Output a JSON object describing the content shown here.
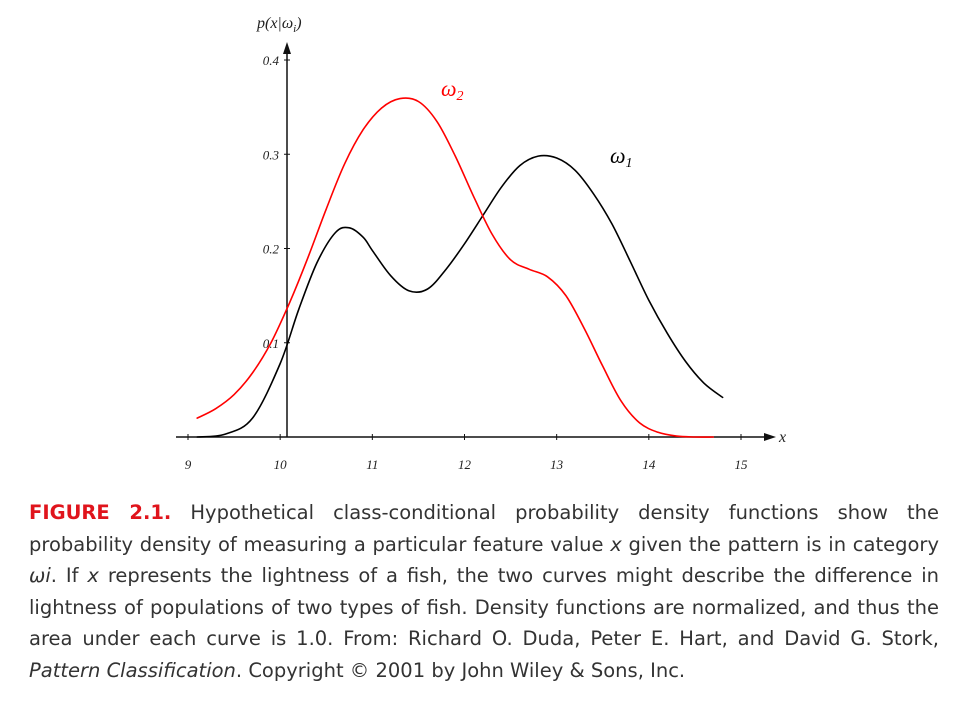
{
  "chart_data": {
    "type": "line",
    "xlabel": "x",
    "ylabel": "p(x|ωi)",
    "xlim": [
      9,
      15
    ],
    "ylim": [
      0,
      0.4
    ],
    "x_ticks": [
      "9",
      "10",
      "11",
      "12",
      "13",
      "14",
      "15"
    ],
    "y_ticks": [
      "0.1",
      "0.2",
      "0.3",
      "0.4"
    ],
    "grid": false,
    "series": [
      {
        "name": "ω1",
        "color": "#000000",
        "x": [
          9.1,
          9.4,
          9.7,
          10.0,
          10.2,
          10.4,
          10.6,
          10.75,
          10.9,
          11.0,
          11.2,
          11.4,
          11.6,
          11.8,
          12.0,
          12.2,
          12.4,
          12.6,
          12.8,
          13.0,
          13.2,
          13.4,
          13.6,
          13.8,
          14.0,
          14.2,
          14.4,
          14.6,
          14.8
        ],
        "y": [
          0.0,
          0.003,
          0.02,
          0.078,
          0.135,
          0.185,
          0.217,
          0.222,
          0.212,
          0.198,
          0.171,
          0.155,
          0.157,
          0.178,
          0.205,
          0.235,
          0.265,
          0.288,
          0.298,
          0.296,
          0.283,
          0.258,
          0.226,
          0.186,
          0.145,
          0.11,
          0.08,
          0.057,
          0.042
        ]
      },
      {
        "name": "ω2",
        "color": "#ff0000",
        "x": [
          9.1,
          9.3,
          9.5,
          9.7,
          9.9,
          10.1,
          10.3,
          10.5,
          10.7,
          10.9,
          11.1,
          11.3,
          11.5,
          11.7,
          11.9,
          12.1,
          12.3,
          12.5,
          12.7,
          12.9,
          13.1,
          13.3,
          13.5,
          13.7,
          13.9,
          14.1,
          14.3,
          14.5,
          14.7
        ],
        "y": [
          0.02,
          0.03,
          0.045,
          0.068,
          0.1,
          0.142,
          0.19,
          0.242,
          0.29,
          0.326,
          0.349,
          0.359,
          0.356,
          0.335,
          0.298,
          0.255,
          0.215,
          0.188,
          0.178,
          0.17,
          0.15,
          0.115,
          0.075,
          0.038,
          0.015,
          0.005,
          0.001,
          0.0,
          0.0
        ]
      }
    ]
  },
  "caption": {
    "figure_label": "FIGURE 2.1.",
    "text_part1": " Hypothetical class-conditional probability density functions show the probability density of measuring a particular feature value ",
    "var_x1": "x",
    "text_part2": " given the pattern is in category ",
    "var_omega": "ωi",
    "text_part3": ". If ",
    "var_x2": "x",
    "text_part4": " represents the lightness of a fish, the two curves might describe the difference in lightness of populations of two types of fish. Density functions are normalized, and thus the area under each curve is 1.0. From: Richard O. Duda, Peter E. Hart, and David G. Stork, ",
    "book_title": "Pattern Classification",
    "text_part5": ". Copyright © 2001 by John Wiley & Sons, Inc."
  }
}
